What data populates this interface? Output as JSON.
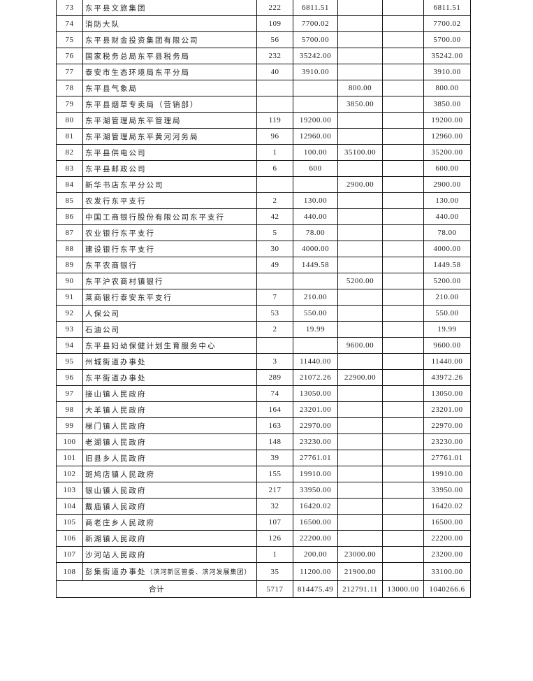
{
  "table": {
    "rows": [
      [
        "73",
        "东平县文旅集团",
        "222",
        "6811.51",
        "",
        "",
        "6811.51"
      ],
      [
        "74",
        "消防大队",
        "109",
        "7700.02",
        "",
        "",
        "7700.02"
      ],
      [
        "75",
        "东平县财金投资集团有限公司",
        "56",
        "5700.00",
        "",
        "",
        "5700.00"
      ],
      [
        "76",
        "国家税务总局东平县税务局",
        "232",
        "35242.00",
        "",
        "",
        "35242.00"
      ],
      [
        "77",
        "泰安市生态环境局东平分局",
        "40",
        "3910.00",
        "",
        "",
        "3910.00"
      ],
      [
        "78",
        "东平县气象局",
        "",
        "",
        "800.00",
        "",
        "800.00"
      ],
      [
        "79",
        "东平县烟草专卖局（营销部）",
        "",
        "",
        "3850.00",
        "",
        "3850.00"
      ],
      [
        "80",
        "东平湖管理局东平管理局",
        "119",
        "19200.00",
        "",
        "",
        "19200.00"
      ],
      [
        "81",
        "东平湖管理局东平黄河河务局",
        "96",
        "12960.00",
        "",
        "",
        "12960.00"
      ],
      [
        "82",
        "东平县供电公司",
        "1",
        "100.00",
        "35100.00",
        "",
        "35200.00"
      ],
      [
        "83",
        "东平县邮政公司",
        "6",
        "600",
        "",
        "",
        "600.00"
      ],
      [
        "84",
        "新华书店东平分公司",
        "",
        "",
        "2900.00",
        "",
        "2900.00"
      ],
      [
        "85",
        "农发行东平支行",
        "2",
        "130.00",
        "",
        "",
        "130.00"
      ],
      [
        "86",
        "中国工商银行股份有限公司东平支行",
        "42",
        "440.00",
        "",
        "",
        "440.00"
      ],
      [
        "87",
        "农业银行东平支行",
        "5",
        "78.00",
        "",
        "",
        "78.00"
      ],
      [
        "88",
        "建设银行东平支行",
        "30",
        "4000.00",
        "",
        "",
        "4000.00"
      ],
      [
        "89",
        "东平农商银行",
        "49",
        "1449.58",
        "",
        "",
        "1449.58"
      ],
      [
        "90",
        "东平沪农商村镇银行",
        "",
        "",
        "5200.00",
        "",
        "5200.00"
      ],
      [
        "91",
        "莱商银行泰安东平支行",
        "7",
        "210.00",
        "",
        "",
        "210.00"
      ],
      [
        "92",
        "人保公司",
        "53",
        "550.00",
        "",
        "",
        "550.00"
      ],
      [
        "93",
        "石油公司",
        "2",
        "19.99",
        "",
        "",
        "19.99"
      ],
      [
        "94",
        "东平县妇幼保健计划生育服务中心",
        "",
        "",
        "9600.00",
        "",
        "9600.00"
      ],
      [
        "95",
        "州城街道办事处",
        "3",
        "11440.00",
        "",
        "",
        "11440.00"
      ],
      [
        "96",
        "东平街道办事处",
        "289",
        "21072.26",
        "22900.00",
        "",
        "43972.26"
      ],
      [
        "97",
        "接山镇人民政府",
        "74",
        "13050.00",
        "",
        "",
        "13050.00"
      ],
      [
        "98",
        "大羊镇人民政府",
        "164",
        "23201.00",
        "",
        "",
        "23201.00"
      ],
      [
        "99",
        "梯门镇人民政府",
        "163",
        "22970.00",
        "",
        "",
        "22970.00"
      ],
      [
        "100",
        "老湖镇人民政府",
        "148",
        "23230.00",
        "",
        "",
        "23230.00"
      ],
      [
        "101",
        "旧县乡人民政府",
        "39",
        "27761.01",
        "",
        "",
        "27761.01"
      ],
      [
        "102",
        "斑鸠店镇人民政府",
        "155",
        "19910.00",
        "",
        "",
        "19910.00"
      ],
      [
        "103",
        "银山镇人民政府",
        "217",
        "33950.00",
        "",
        "",
        "33950.00"
      ],
      [
        "104",
        "戴庙镇人民政府",
        "32",
        "16420.02",
        "",
        "",
        "16420.02"
      ],
      [
        "105",
        "商老庄乡人民政府",
        "107",
        "16500.00",
        "",
        "",
        "16500.00"
      ],
      [
        "106",
        "新湖镇人民政府",
        "126",
        "22200.00",
        "",
        "",
        "22200.00"
      ],
      [
        "107",
        "沙河站人民政府",
        "1",
        "200.00",
        "23000.00",
        "",
        "23200.00"
      ]
    ],
    "last_row": {
      "index": "108",
      "name": "彭集街道办事处",
      "name_note": "（滨河新区管委、滨河发展集团）",
      "count": "35",
      "c1": "11200.00",
      "c2": "21900.00",
      "c3": "",
      "total": "33100.00"
    },
    "totals": {
      "label": "合计",
      "count": "5717",
      "c1": "814475.49",
      "c2": "212791.11",
      "c3": "13000.00",
      "total": "1040266.6"
    }
  }
}
